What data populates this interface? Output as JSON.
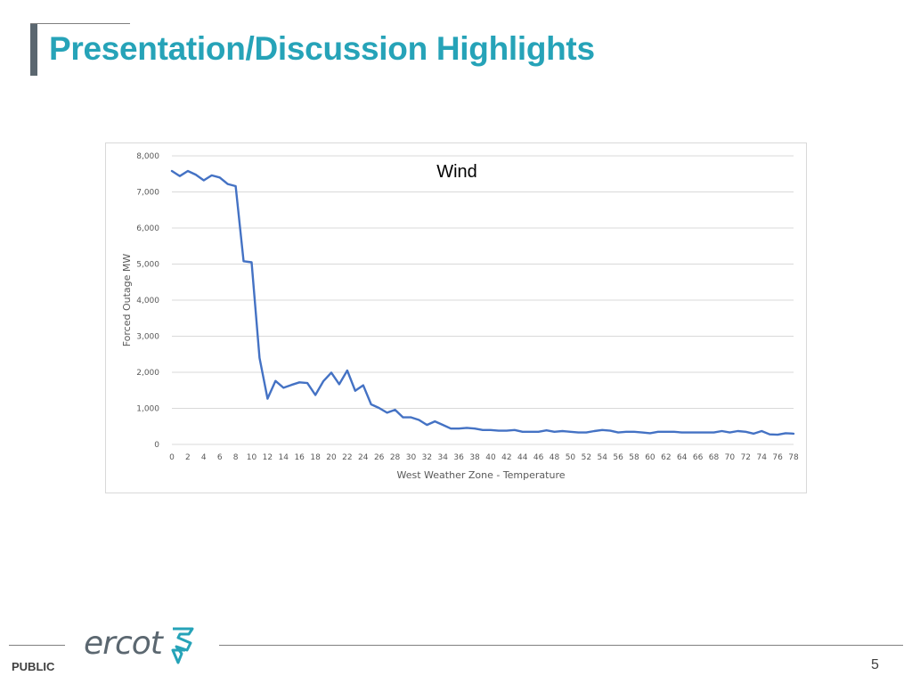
{
  "slide": {
    "title": "Presentation/Discussion Highlights",
    "footer_label": "PUBLIC",
    "page_number": "5",
    "logo_text": "ercot",
    "accent_color": "#26a3b8",
    "line_color": "#4472c4"
  },
  "chart_data": {
    "type": "line",
    "title": "Wind",
    "xlabel": "West Weather Zone - Temperature",
    "ylabel": "Forced Outage MW",
    "xlim": [
      0,
      78
    ],
    "ylim": [
      0,
      8000
    ],
    "yticks": [
      0,
      1000,
      2000,
      3000,
      4000,
      5000,
      6000,
      7000,
      8000
    ],
    "ytick_labels": [
      "0",
      "1,000",
      "2,000",
      "3,000",
      "4,000",
      "5,000",
      "6,000",
      "7,000",
      "8,000"
    ],
    "xtick_labels": [
      "0",
      "2",
      "4",
      "6",
      "8",
      "10",
      "12",
      "14",
      "16",
      "18",
      "20",
      "22",
      "24",
      "26",
      "28",
      "30",
      "32",
      "34",
      "36",
      "38",
      "40",
      "42",
      "44",
      "46",
      "48",
      "50",
      "52",
      "54",
      "56",
      "58",
      "60",
      "62",
      "64",
      "66",
      "68",
      "70",
      "72",
      "74",
      "76",
      "78"
    ],
    "grid": "horizontal",
    "legend": "none",
    "series": [
      {
        "x": [
          0,
          1,
          2,
          3,
          4,
          5,
          6,
          7,
          8,
          9,
          10,
          11,
          12,
          13,
          14,
          15,
          16,
          17,
          18,
          19,
          20,
          21,
          22,
          23,
          24,
          25,
          26,
          27,
          28,
          29,
          30,
          31,
          32,
          33,
          34,
          35,
          36,
          37,
          38,
          39,
          40,
          41,
          42,
          43,
          44,
          45,
          46,
          47,
          48,
          49,
          50,
          51,
          52,
          53,
          54,
          55,
          56,
          57,
          58,
          59,
          60,
          61,
          62,
          63,
          64,
          65,
          66,
          67,
          68,
          69,
          70,
          71,
          72,
          73,
          74,
          75,
          76,
          77,
          78
        ],
        "values": [
          7580,
          7440,
          7580,
          7480,
          7320,
          7460,
          7400,
          7220,
          7160,
          5080,
          5050,
          2400,
          1270,
          1760,
          1570,
          1650,
          1720,
          1700,
          1370,
          1750,
          1990,
          1670,
          2050,
          1490,
          1640,
          1110,
          1010,
          880,
          960,
          750,
          750,
          680,
          540,
          640,
          540,
          440,
          440,
          460,
          440,
          400,
          400,
          380,
          380,
          400,
          350,
          350,
          350,
          390,
          350,
          370,
          350,
          330,
          330,
          370,
          400,
          380,
          330,
          350,
          350,
          330,
          310,
          350,
          350,
          350,
          330,
          330,
          330,
          330,
          330,
          370,
          330,
          370,
          350,
          300,
          370,
          280,
          270,
          310,
          300
        ]
      }
    ]
  }
}
